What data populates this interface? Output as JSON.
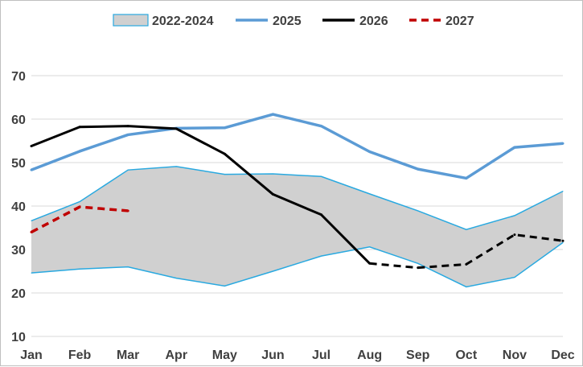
{
  "chart_data": {
    "type": "line",
    "title": "",
    "xlabel": "",
    "ylabel": "",
    "categories": [
      "Jan",
      "Feb",
      "Mar",
      "Apr",
      "May",
      "Jun",
      "Jul",
      "Aug",
      "Sep",
      "Oct",
      "Nov",
      "Dec"
    ],
    "ylim": [
      10,
      70
    ],
    "yticks": [
      10,
      20,
      30,
      40,
      50,
      60,
      70
    ],
    "grid": "horizontal",
    "legend_position": "top",
    "range_band": {
      "name": "2022-2024",
      "upper": [
        36.6,
        41.0,
        48.3,
        49.1,
        47.3,
        47.4,
        46.8,
        42.8,
        38.9,
        34.6,
        37.8,
        43.4
      ],
      "lower": [
        24.6,
        25.5,
        26.0,
        23.4,
        21.6,
        25.0,
        28.5,
        30.6,
        26.8,
        21.4,
        23.6,
        31.6
      ],
      "fill_color": "#d0d0d0",
      "line_color": "#29a9e0"
    },
    "series": [
      {
        "name": "2025",
        "color": "#5b9bd5",
        "style": "solid",
        "values": [
          48.3,
          52.6,
          56.4,
          57.9,
          58.0,
          61.1,
          58.4,
          52.5,
          48.5,
          46.4,
          53.5,
          54.4
        ]
      },
      {
        "name": "2026",
        "color": "#000000",
        "style": "solid-then-dashed",
        "dashed_from_index": 7,
        "values": [
          53.8,
          58.2,
          58.4,
          57.8,
          52.0,
          42.7,
          38.0,
          26.8,
          25.8,
          26.6,
          33.4,
          32.0
        ]
      },
      {
        "name": "2027",
        "color": "#c00000",
        "style": "dashed",
        "values": [
          34.0,
          39.8,
          38.9,
          null,
          null,
          null,
          null,
          null,
          null,
          null,
          null,
          null
        ]
      }
    ]
  }
}
